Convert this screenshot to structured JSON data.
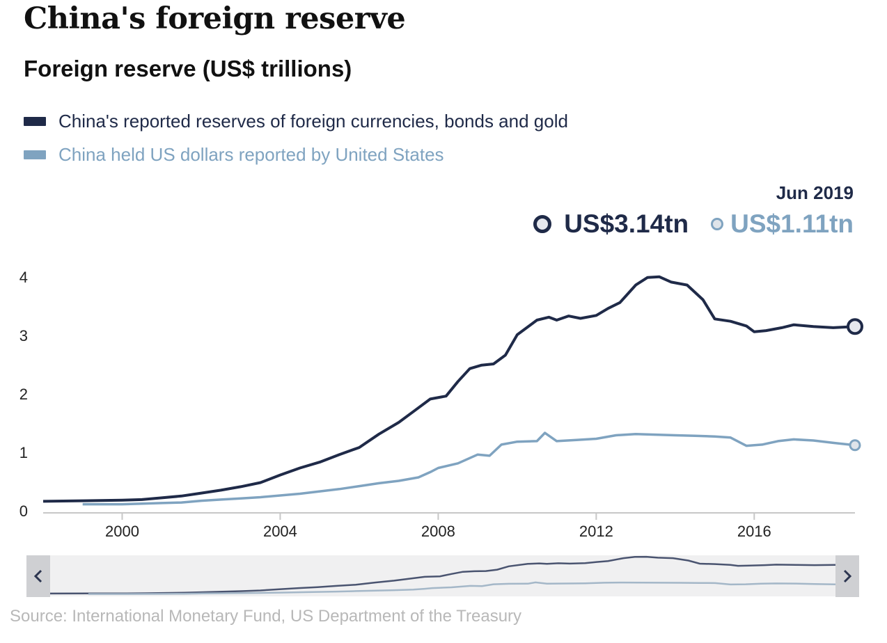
{
  "header": {
    "title": "China's foreign reserve",
    "subtitle": "Foreign reserve (US$ trillions)"
  },
  "legend": [
    {
      "label": "China's reported reserves of foreign currencies, bonds and gold",
      "color": "#1f2a48"
    },
    {
      "label": "China held US dollars reported by United States",
      "color": "#7fa3c0"
    }
  ],
  "latest": {
    "date": "Jun 2019",
    "reserves_label": "US$3.14tn",
    "us_dollars_label": "US$1.11tn"
  },
  "source": "Source: International Monetary Fund, US Department of the Treasury",
  "navigator": {
    "left_icon": "chevron-left-icon",
    "right_icon": "chevron-right-icon"
  },
  "chart_data": {
    "type": "line",
    "title": "Foreign reserve (US$ trillions)",
    "xlabel": "",
    "ylabel": "",
    "xlim": [
      1998.0,
      2018.55
    ],
    "ylim": [
      0,
      4
    ],
    "y_ticks": [
      0,
      1,
      2,
      3,
      4
    ],
    "x_ticks": [
      2000,
      2004,
      2008,
      2012,
      2016
    ],
    "grid": false,
    "legend_position": "top-left",
    "series": [
      {
        "name": "China's reported reserves of foreign currencies, bonds and gold",
        "color": "#1f2a48",
        "x": [
          1998.0,
          1999.0,
          2000.0,
          2000.5,
          2001.0,
          2001.5,
          2002.0,
          2002.5,
          2003.0,
          2003.5,
          2004.0,
          2004.5,
          2005.0,
          2005.5,
          2006.0,
          2006.5,
          2007.0,
          2007.4,
          2007.8,
          2008.2,
          2008.5,
          2008.8,
          2009.1,
          2009.4,
          2009.7,
          2010.0,
          2010.5,
          2010.8,
          2011.0,
          2011.3,
          2011.6,
          2012.0,
          2012.3,
          2012.6,
          2013.0,
          2013.3,
          2013.6,
          2013.9,
          2014.3,
          2014.7,
          2015.0,
          2015.4,
          2015.8,
          2016.0,
          2016.3,
          2016.7,
          2017.0,
          2017.5,
          2018.0,
          2018.55
        ],
        "y": [
          0.15,
          0.16,
          0.17,
          0.18,
          0.21,
          0.24,
          0.29,
          0.34,
          0.4,
          0.47,
          0.6,
          0.72,
          0.82,
          0.95,
          1.07,
          1.3,
          1.5,
          1.7,
          1.9,
          1.95,
          2.2,
          2.42,
          2.48,
          2.5,
          2.65,
          3.0,
          3.25,
          3.3,
          3.25,
          3.32,
          3.28,
          3.33,
          3.45,
          3.55,
          3.85,
          3.98,
          3.99,
          3.9,
          3.85,
          3.6,
          3.27,
          3.23,
          3.15,
          3.05,
          3.07,
          3.12,
          3.17,
          3.14,
          3.12,
          3.14
        ]
      },
      {
        "name": "China held US dollars reported by United States",
        "color": "#7fa3c0",
        "x": [
          1999.0,
          2000.0,
          2000.5,
          2001.0,
          2001.5,
          2002.0,
          2002.5,
          2003.0,
          2003.5,
          2004.0,
          2004.5,
          2005.0,
          2005.5,
          2006.0,
          2006.5,
          2007.0,
          2007.5,
          2007.8,
          2008.0,
          2008.5,
          2009.0,
          2009.3,
          2009.6,
          2010.0,
          2010.5,
          2010.7,
          2011.0,
          2011.5,
          2012.0,
          2012.5,
          2013.0,
          2013.5,
          2014.0,
          2014.5,
          2015.0,
          2015.4,
          2015.8,
          2016.2,
          2016.6,
          2017.0,
          2017.5,
          2018.0,
          2018.55
        ],
        "y": [
          0.1,
          0.1,
          0.11,
          0.12,
          0.13,
          0.16,
          0.18,
          0.2,
          0.22,
          0.25,
          0.28,
          0.32,
          0.36,
          0.41,
          0.46,
          0.5,
          0.56,
          0.65,
          0.72,
          0.8,
          0.95,
          0.93,
          1.12,
          1.17,
          1.18,
          1.32,
          1.18,
          1.2,
          1.22,
          1.28,
          1.3,
          1.29,
          1.28,
          1.27,
          1.26,
          1.24,
          1.1,
          1.12,
          1.18,
          1.21,
          1.19,
          1.15,
          1.11
        ]
      }
    ]
  }
}
